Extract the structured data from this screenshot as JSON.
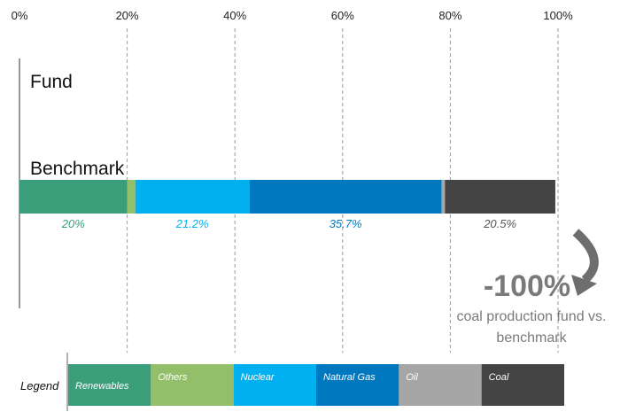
{
  "chart_data": {
    "type": "bar",
    "orientation": "horizontal",
    "stacked": true,
    "categories": [
      "Fund",
      "Benchmark"
    ],
    "x_ticks": [
      "0%",
      "20%",
      "40%",
      "60%",
      "80%",
      "100%"
    ],
    "xlim": [
      0,
      100
    ],
    "grid": "vertical dashed",
    "series": [
      {
        "name": "Renewables",
        "color": "#3a9e7a",
        "values": [
          0,
          20
        ],
        "label": "20%",
        "label_color": "#3a9e7a"
      },
      {
        "name": "Others",
        "color": "#93be6a",
        "values": [
          0,
          1.5
        ],
        "label": "",
        "label_color": "#93be6a"
      },
      {
        "name": "Nuclear",
        "color": "#00b0f0",
        "values": [
          0,
          21.2
        ],
        "label": "21.2%",
        "label_color": "#00b0f0"
      },
      {
        "name": "Natural Gas",
        "color": "#0078c0",
        "values": [
          0,
          35.7
        ],
        "label": "35.7%",
        "label_color": "#0078c0"
      },
      {
        "name": "Oil",
        "color": "#a6a6a6",
        "values": [
          0,
          0.6
        ],
        "label": "",
        "label_color": "#a6a6a6"
      },
      {
        "name": "Coal",
        "color": "#444444",
        "values": [
          0,
          20.5
        ],
        "label": "20.5%",
        "label_color": "#555555"
      }
    ],
    "legend_title": "Legend",
    "legend_position": "bottom",
    "annotation": {
      "value": "-100%",
      "text_line1": "coal production fund vs.",
      "text_line2": "benchmark"
    }
  }
}
